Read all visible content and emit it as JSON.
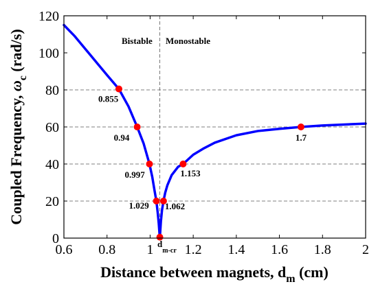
{
  "chart_data": {
    "type": "line",
    "xlabel_main": "Distance between magnets, d",
    "xlabel_sub": "m",
    "xlabel_unit": " (cm)",
    "ylabel_main": "Coupled Frequency, ",
    "ylabel_symbol": "ω",
    "ylabel_sub": "c",
    "ylabel_unit": " (rad/s)",
    "xlim": [
      0.6,
      2.0
    ],
    "ylim": [
      0,
      120
    ],
    "xticks": [
      "0.6",
      "0.8",
      "1",
      "1.2",
      "1.4",
      "1.6",
      "1.8",
      "2"
    ],
    "yticks": [
      "0",
      "20",
      "40",
      "60",
      "80",
      "100",
      "120"
    ],
    "grid_y": [
      20,
      40,
      60,
      80
    ],
    "critical_x": 1.045,
    "critical_label_main": "d",
    "critical_label_sub": "m-cr",
    "regions": {
      "left": "Bistable",
      "right": "Monostable"
    },
    "colors": {
      "curve": "#0000ff",
      "marker": "#ff0000",
      "grid": "#555555"
    },
    "series": [
      {
        "x": [
          0.6,
          0.65,
          0.7,
          0.75,
          0.8,
          0.855,
          0.9,
          0.94,
          0.97,
          0.997,
          1.01,
          1.02,
          1.029,
          1.035,
          1.04,
          1.045
        ],
        "y": [
          115,
          109,
          102,
          95,
          88,
          80.5,
          71,
          60,
          51,
          40,
          33,
          26,
          20,
          14,
          8,
          0
        ]
      },
      {
        "x": [
          1.045,
          1.05,
          1.055,
          1.062,
          1.07,
          1.08,
          1.1,
          1.13,
          1.153,
          1.2,
          1.25,
          1.3,
          1.4,
          1.5,
          1.6,
          1.7,
          1.8,
          1.9,
          2.0
        ],
        "y": [
          0,
          9,
          15,
          20,
          24.5,
          28.5,
          34,
          38.5,
          40,
          45,
          48.5,
          51.5,
          55.5,
          57.8,
          59,
          60,
          60.8,
          61.3,
          61.8
        ]
      }
    ],
    "points": [
      {
        "x": 0.855,
        "y": 80.5,
        "label": "0.855"
      },
      {
        "x": 0.94,
        "y": 60,
        "label": "0.94"
      },
      {
        "x": 0.997,
        "y": 40,
        "label": "0.997"
      },
      {
        "x": 1.029,
        "y": 20,
        "label": "1.029"
      },
      {
        "x": 1.045,
        "y": 0.5,
        "label": ""
      },
      {
        "x": 1.062,
        "y": 20,
        "label": "1.062"
      },
      {
        "x": 1.153,
        "y": 40,
        "label": "1.153"
      },
      {
        "x": 1.7,
        "y": 60,
        "label": "1.7"
      }
    ]
  }
}
